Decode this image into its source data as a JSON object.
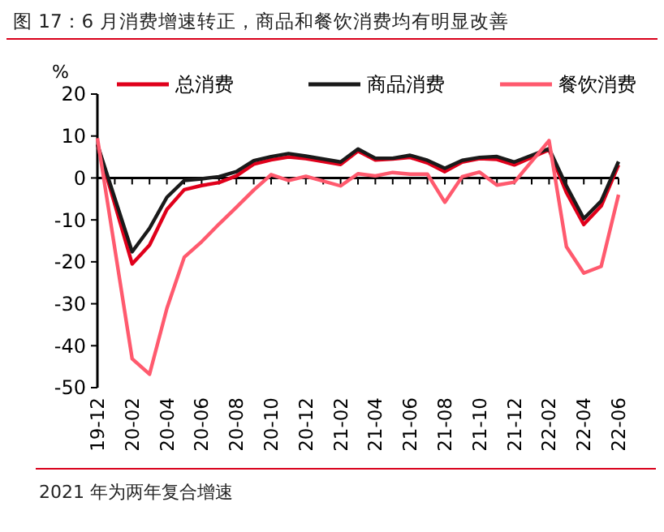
{
  "chart_data": {
    "type": "line",
    "title": "图 17：6 月消费增速转正，商品和餐饮消费均有明显改善",
    "ylabel": "%",
    "categories": [
      "19-12",
      null,
      "20-02",
      null,
      "20-04",
      null,
      "20-06",
      null,
      "20-08",
      null,
      "20-10",
      null,
      "20-12",
      null,
      "21-02",
      null,
      "21-04",
      null,
      "21-06",
      null,
      "21-08",
      null,
      "21-10",
      null,
      "21-12",
      null,
      "22-02",
      null,
      "22-04",
      null,
      "22-06"
    ],
    "series": [
      {
        "name": "总消费",
        "color": "#e0001b",
        "values": [
          8,
          null,
          -20.5,
          -16,
          -7.5,
          -2.8,
          -1.8,
          -1.1,
          0.5,
          3.3,
          4.3,
          5,
          4.6,
          null,
          3.2,
          6.4,
          4.3,
          4.5,
          4.9,
          3.6,
          1.5,
          3.8,
          4.6,
          4.4,
          3.1,
          null,
          6.7,
          -3.5,
          -11.1,
          -6.7,
          3.1
        ]
      },
      {
        "name": "商品消费",
        "color": "#1a1a1a",
        "values": [
          8,
          null,
          -17.6,
          -12,
          -4.6,
          -0.6,
          -0.2,
          0.3,
          1.5,
          4.1,
          5.1,
          5.8,
          5.2,
          null,
          3.8,
          6.9,
          4.7,
          4.7,
          5.4,
          4.2,
          2.3,
          4.2,
          4.9,
          5.1,
          3.8,
          null,
          7,
          -1.9,
          -9.7,
          -5.5,
          3.9
        ]
      },
      {
        "name": "餐饮消费",
        "color": "#ff5a6e",
        "values": [
          9.5,
          null,
          -43.1,
          -46.8,
          -31.1,
          -18.9,
          -15.2,
          -11,
          -7,
          -2.9,
          0.8,
          -0.6,
          0.4,
          null,
          -1.9,
          1,
          0.5,
          1.3,
          0.9,
          0.9,
          -5.8,
          0.3,
          1.4,
          -1.7,
          -1,
          null,
          8.9,
          -16.4,
          -22.7,
          -21.1,
          -4
        ]
      }
    ],
    "ylim": [
      -50,
      20
    ],
    "yticks": [
      -50,
      -40,
      -30,
      -20,
      -10,
      0,
      10,
      20
    ],
    "legend": "top",
    "annotations": [
      "2021 年为两年复合增速"
    ]
  }
}
